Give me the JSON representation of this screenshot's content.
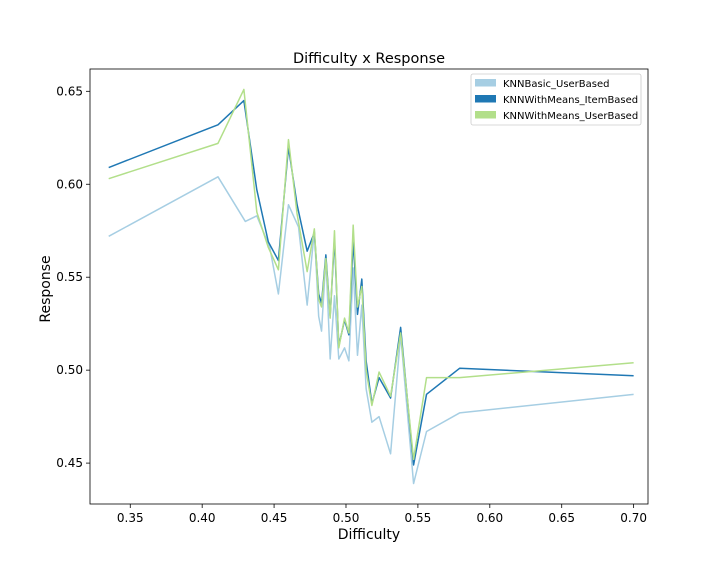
{
  "chart_data": {
    "type": "line",
    "title": "Difficulty x Response",
    "xlabel": "Difficulty",
    "ylabel": "Response",
    "xlim": [
      0.322,
      0.71
    ],
    "ylim": [
      0.428,
      0.662
    ],
    "xticks": [
      0.35,
      0.4,
      0.45,
      0.5,
      0.55,
      0.6,
      0.65,
      0.7
    ],
    "yticks": [
      0.45,
      0.5,
      0.55,
      0.6,
      0.65
    ],
    "grid": false,
    "legend_position": "top-right",
    "series": [
      {
        "name": "KNNBasic_UserBased",
        "color": "#a6cee3",
        "points": [
          [
            0.335,
            0.572
          ],
          [
            0.411,
            0.604
          ],
          [
            0.43,
            0.58
          ],
          [
            0.438,
            0.583
          ],
          [
            0.447,
            0.566
          ],
          [
            0.453,
            0.541
          ],
          [
            0.46,
            0.589
          ],
          [
            0.467,
            0.577
          ],
          [
            0.473,
            0.535
          ],
          [
            0.478,
            0.575
          ],
          [
            0.481,
            0.529
          ],
          [
            0.483,
            0.521
          ],
          [
            0.486,
            0.56
          ],
          [
            0.489,
            0.506
          ],
          [
            0.492,
            0.54
          ],
          [
            0.495,
            0.506
          ],
          [
            0.499,
            0.512
          ],
          [
            0.502,
            0.505
          ],
          [
            0.505,
            0.555
          ],
          [
            0.508,
            0.508
          ],
          [
            0.511,
            0.535
          ],
          [
            0.514,
            0.49
          ],
          [
            0.518,
            0.472
          ],
          [
            0.523,
            0.475
          ],
          [
            0.531,
            0.455
          ],
          [
            0.538,
            0.519
          ],
          [
            0.547,
            0.439
          ],
          [
            0.556,
            0.467
          ],
          [
            0.579,
            0.477
          ],
          [
            0.7,
            0.487
          ]
        ]
      },
      {
        "name": "KNNWithMeans_ItemBased",
        "color": "#1f78b4",
        "points": [
          [
            0.335,
            0.609
          ],
          [
            0.411,
            0.632
          ],
          [
            0.429,
            0.645
          ],
          [
            0.438,
            0.597
          ],
          [
            0.446,
            0.569
          ],
          [
            0.453,
            0.559
          ],
          [
            0.46,
            0.62
          ],
          [
            0.466,
            0.589
          ],
          [
            0.473,
            0.564
          ],
          [
            0.478,
            0.574
          ],
          [
            0.481,
            0.541
          ],
          [
            0.483,
            0.536
          ],
          [
            0.486,
            0.562
          ],
          [
            0.489,
            0.529
          ],
          [
            0.492,
            0.571
          ],
          [
            0.495,
            0.513
          ],
          [
            0.499,
            0.527
          ],
          [
            0.502,
            0.519
          ],
          [
            0.505,
            0.57
          ],
          [
            0.508,
            0.53
          ],
          [
            0.511,
            0.549
          ],
          [
            0.514,
            0.505
          ],
          [
            0.518,
            0.482
          ],
          [
            0.523,
            0.496
          ],
          [
            0.531,
            0.485
          ],
          [
            0.538,
            0.523
          ],
          [
            0.547,
            0.449
          ],
          [
            0.556,
            0.487
          ],
          [
            0.579,
            0.501
          ],
          [
            0.7,
            0.497
          ]
        ]
      },
      {
        "name": "KNNWithMeans_UserBased",
        "color": "#b2df8a",
        "points": [
          [
            0.335,
            0.603
          ],
          [
            0.411,
            0.622
          ],
          [
            0.429,
            0.651
          ],
          [
            0.438,
            0.585
          ],
          [
            0.446,
            0.566
          ],
          [
            0.453,
            0.554
          ],
          [
            0.46,
            0.624
          ],
          [
            0.466,
            0.584
          ],
          [
            0.473,
            0.553
          ],
          [
            0.478,
            0.576
          ],
          [
            0.481,
            0.538
          ],
          [
            0.483,
            0.534
          ],
          [
            0.486,
            0.56
          ],
          [
            0.489,
            0.528
          ],
          [
            0.492,
            0.575
          ],
          [
            0.495,
            0.512
          ],
          [
            0.499,
            0.528
          ],
          [
            0.502,
            0.52
          ],
          [
            0.505,
            0.578
          ],
          [
            0.508,
            0.534
          ],
          [
            0.511,
            0.545
          ],
          [
            0.514,
            0.5
          ],
          [
            0.518,
            0.481
          ],
          [
            0.523,
            0.499
          ],
          [
            0.531,
            0.486
          ],
          [
            0.538,
            0.52
          ],
          [
            0.547,
            0.452
          ],
          [
            0.556,
            0.496
          ],
          [
            0.579,
            0.496
          ],
          [
            0.7,
            0.504
          ]
        ]
      }
    ]
  }
}
